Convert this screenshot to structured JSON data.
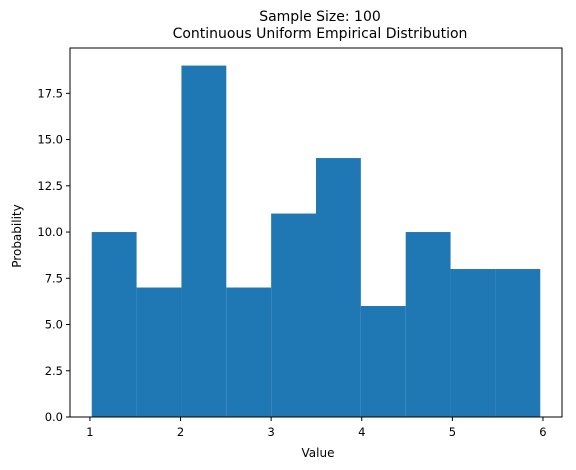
{
  "chart_data": {
    "type": "bar",
    "title": "Sample Size: 100",
    "subtitle": "Continuous Uniform Empirical Distribution",
    "xlabel": "Value",
    "ylabel": "Probability",
    "bin_edges": [
      1.02,
      1.515,
      2.01,
      2.505,
      3.0,
      3.495,
      3.99,
      4.485,
      4.98,
      5.475,
      5.97
    ],
    "values": [
      10,
      7,
      19,
      7,
      11,
      14,
      6,
      10,
      8,
      8
    ],
    "xlim": [
      0.78,
      6.21
    ],
    "ylim": [
      0,
      19.95
    ],
    "xticks": [
      1,
      2,
      3,
      4,
      5,
      6
    ],
    "yticks": [
      0.0,
      2.5,
      5.0,
      7.5,
      10.0,
      12.5,
      15.0,
      17.5
    ],
    "xtick_labels": [
      "1",
      "2",
      "3",
      "4",
      "5",
      "6"
    ],
    "ytick_labels": [
      "0.0",
      "2.5",
      "5.0",
      "7.5",
      "10.0",
      "12.5",
      "15.0",
      "17.5"
    ],
    "bar_color": "#1f77b4",
    "grid": false,
    "legend": "none"
  }
}
